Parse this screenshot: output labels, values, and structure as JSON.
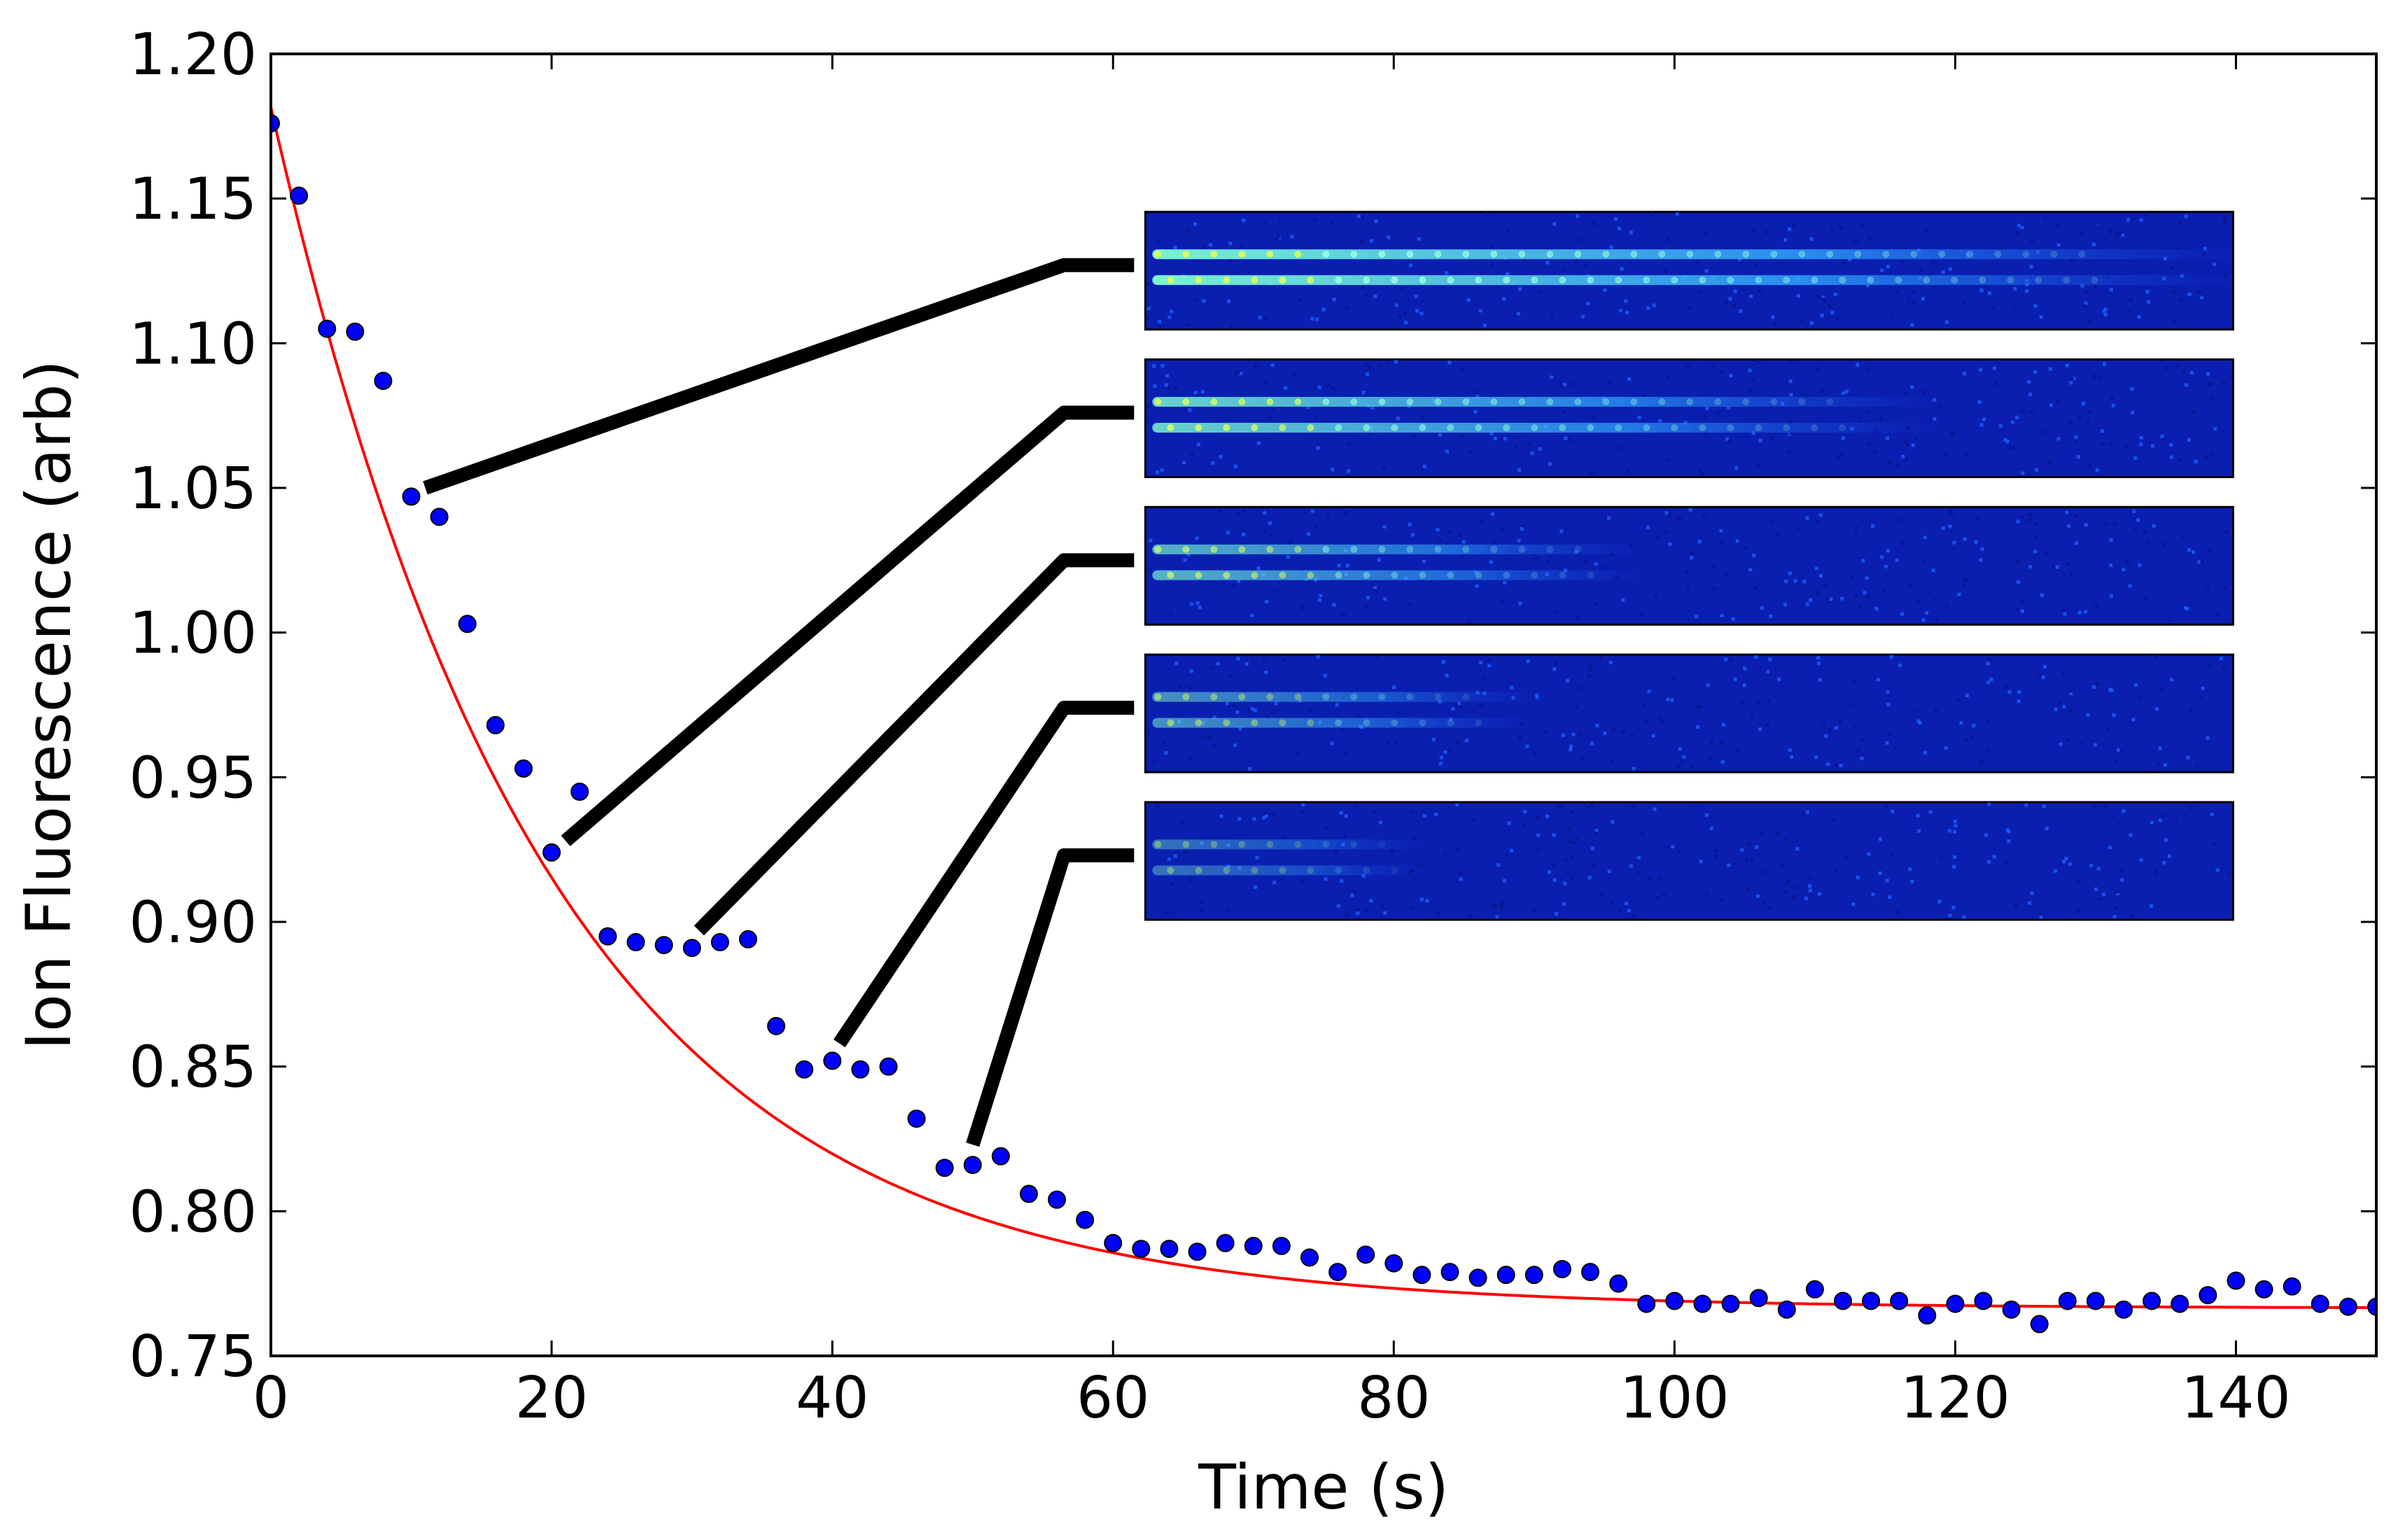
{
  "chart_data": {
    "type": "scatter",
    "title": "",
    "xlabel": "Time (s)",
    "ylabel": "Ion Fluorescence (arb)",
    "xlim": [
      0,
      150
    ],
    "ylim": [
      0.75,
      1.2
    ],
    "xticks": [
      0,
      20,
      40,
      60,
      80,
      100,
      120,
      140
    ],
    "xtick_labels": [
      "0",
      "20",
      "40",
      "60",
      "80",
      "100",
      "120",
      "140"
    ],
    "yticks": [
      0.75,
      0.8,
      0.85,
      0.9,
      0.95,
      1.0,
      1.05,
      1.1,
      1.15,
      1.2
    ],
    "ytick_labels": [
      "0.75",
      "0.80",
      "0.85",
      "0.90",
      "0.95",
      "1.00",
      "1.05",
      "1.10",
      "1.15",
      "1.20"
    ],
    "grid": false,
    "colors": {
      "points": "#0000ff",
      "fit": "#ff0000",
      "callouts": "#000000",
      "image_bg": "#0a1fb0"
    },
    "series": [
      {
        "kind": "points",
        "x": [
          0,
          2,
          4,
          6,
          8,
          10,
          12,
          14,
          16,
          18,
          20,
          22,
          24,
          26,
          28,
          30,
          32,
          34,
          36,
          38,
          40,
          42,
          44,
          46,
          48,
          50,
          52,
          54,
          56,
          58,
          60,
          62,
          64,
          66,
          68,
          70,
          72,
          74,
          76,
          78,
          80,
          82,
          84,
          86,
          88,
          90,
          92,
          94,
          96,
          98,
          100,
          102,
          104,
          106,
          108,
          110,
          112,
          114,
          116,
          118,
          120,
          122,
          124,
          126,
          128,
          130,
          132,
          134,
          136,
          138,
          140,
          142,
          144,
          146,
          148,
          150
        ],
        "y": [
          1.176,
          1.151,
          1.105,
          1.104,
          1.087,
          1.047,
          1.04,
          1.003,
          0.968,
          0.953,
          0.924,
          0.945,
          0.895,
          0.893,
          0.892,
          0.891,
          0.893,
          0.894,
          0.864,
          0.849,
          0.852,
          0.849,
          0.85,
          0.832,
          0.815,
          0.816,
          0.819,
          0.806,
          0.804,
          0.797,
          0.789,
          0.787,
          0.787,
          0.786,
          0.789,
          0.788,
          0.788,
          0.784,
          0.779,
          0.785,
          0.782,
          0.778,
          0.779,
          0.777,
          0.778,
          0.778,
          0.78,
          0.779,
          0.775,
          0.768,
          0.769,
          0.768,
          0.768,
          0.77,
          0.766,
          0.773,
          0.769,
          0.769,
          0.769,
          0.764,
          0.768,
          0.769,
          0.766,
          0.761,
          0.769,
          0.769,
          0.766,
          0.769,
          0.768,
          0.771,
          0.776,
          0.773,
          0.774,
          0.768,
          0.767,
          0.767
        ]
      },
      {
        "kind": "fit",
        "model": "exponential",
        "offset": 0.7665,
        "amplitude": 0.415,
        "tau": 19.5
      }
    ],
    "insets": [
      {
        "point_x": 11,
        "point_y": 1.05,
        "elbow_x": 56.5,
        "elbow_y": 1.127,
        "end_x": 61.5,
        "brightness": 1.0,
        "length": 1.0
      },
      {
        "point_x": 21,
        "point_y": 0.928,
        "elbow_x": 56.5,
        "elbow_y": 1.076,
        "end_x": 61.5,
        "brightness": 0.85,
        "length": 0.72
      },
      {
        "point_x": 30.5,
        "point_y": 0.897,
        "elbow_x": 56.5,
        "elbow_y": 1.025,
        "end_x": 61.5,
        "brightness": 0.7,
        "length": 0.45
      },
      {
        "point_x": 40.5,
        "point_y": 0.858,
        "elbow_x": 56.5,
        "elbow_y": 0.974,
        "end_x": 61.5,
        "brightness": 0.55,
        "length": 0.35
      },
      {
        "point_x": 50,
        "point_y": 0.823,
        "elbow_x": 56.5,
        "elbow_y": 0.923,
        "end_x": 61.5,
        "brightness": 0.4,
        "length": 0.25
      }
    ]
  }
}
